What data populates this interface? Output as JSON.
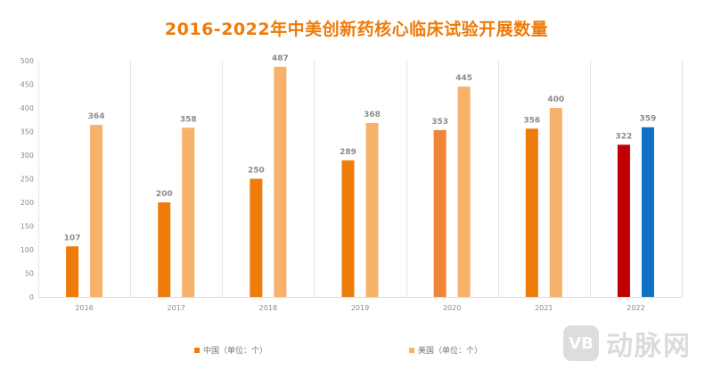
{
  "chart_data": {
    "type": "bar",
    "title": "2016-2022年中美创新药核心临床试验开展数量",
    "categories": [
      "2016",
      "2017",
      "2018",
      "2019",
      "2020",
      "2021",
      "2022"
    ],
    "series": [
      {
        "name": "中国（单位：个）",
        "color": "#ee7b0a",
        "values": [
          107,
          200,
          250,
          289,
          353,
          356,
          322
        ],
        "bar_colors": [
          "#ee7b0a",
          "#ee7b0a",
          "#ee7b0a",
          "#ee7b0a",
          "#ef8538",
          "#ee7b0a",
          "#c00000"
        ]
      },
      {
        "name": "美国（单位：个）",
        "color": "#f6b26b",
        "values": [
          364,
          358,
          487,
          368,
          445,
          400,
          359
        ],
        "bar_colors": [
          "#f6b26b",
          "#f6b26b",
          "#f6b26b",
          "#f6b26b",
          "#f6b26b",
          "#f6b26b",
          "#0f71c3"
        ]
      }
    ],
    "yticks": [
      "0",
      "50",
      "100",
      "150",
      "200",
      "250",
      "300",
      "350",
      "400",
      "450",
      "500"
    ],
    "ylim": [
      0,
      500
    ],
    "grid": "vertical separators between categories",
    "legend_position": "bottom"
  },
  "legend": {
    "china_label": "中国（单位：个）",
    "usa_label": "美国（单位：个）"
  },
  "watermark": {
    "logo_text": "VB",
    "brand_text": "动脉网"
  }
}
